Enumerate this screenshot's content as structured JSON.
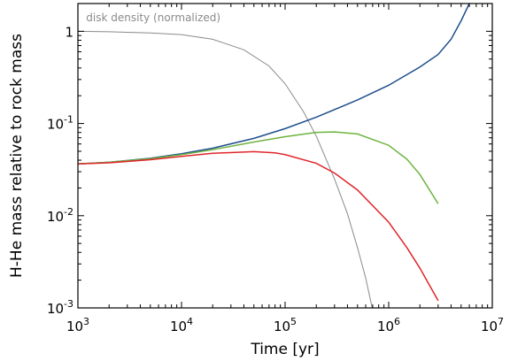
{
  "chart_data": {
    "type": "line",
    "title": "",
    "xlabel": "Time [yr]",
    "ylabel": "H-He mass relative to rock mass",
    "xscale": "log",
    "yscale": "log",
    "xlim": [
      1000,
      10000000
    ],
    "ylim": [
      0.001,
      2
    ],
    "x_ticks": [
      {
        "value": 1000,
        "base": "10",
        "exp": "3"
      },
      {
        "value": 10000,
        "base": "10",
        "exp": "4"
      },
      {
        "value": 100000,
        "base": "10",
        "exp": "5"
      },
      {
        "value": 1000000,
        "base": "10",
        "exp": "6"
      },
      {
        "value": 10000000,
        "base": "10",
        "exp": "7"
      }
    ],
    "y_ticks": [
      {
        "value": 1,
        "base": "1",
        "exp": ""
      },
      {
        "value": 0.1,
        "base": "10",
        "exp": "-1"
      },
      {
        "value": 0.01,
        "base": "10",
        "exp": "-2"
      },
      {
        "value": 0.001,
        "base": "10",
        "exp": "-3"
      }
    ],
    "grid": false,
    "annotation": {
      "text": "disk density (normalized)",
      "x": 1200,
      "y": 1.4
    },
    "series": [
      {
        "color": "#8a8a8a",
        "x": [
          1000,
          2000,
          5000,
          10000,
          20000,
          40000,
          70000,
          100000,
          150000,
          200000,
          300000,
          400000,
          500000,
          600000,
          700000
        ],
        "y": [
          1.0,
          0.99,
          0.96,
          0.92,
          0.82,
          0.63,
          0.42,
          0.27,
          0.135,
          0.073,
          0.025,
          0.0105,
          0.0045,
          0.0021,
          0.00095
        ]
      },
      {
        "color": "#1f4e8c",
        "x": [
          1000,
          2000,
          5000,
          10000,
          20000,
          50000,
          100000,
          200000,
          500000,
          1000000,
          2000000,
          3000000,
          4000000,
          5000000,
          6000000
        ],
        "y": [
          0.0365,
          0.038,
          0.042,
          0.047,
          0.054,
          0.069,
          0.088,
          0.117,
          0.18,
          0.26,
          0.41,
          0.56,
          0.82,
          1.3,
          2.0
        ]
      },
      {
        "color": "#6db33f",
        "x": [
          1000,
          2000,
          5000,
          10000,
          20000,
          50000,
          100000,
          200000,
          300000,
          500000,
          1000000,
          1500000,
          2000000,
          3000000
        ],
        "y": [
          0.0365,
          0.038,
          0.0415,
          0.046,
          0.052,
          0.063,
          0.072,
          0.08,
          0.081,
          0.077,
          0.058,
          0.041,
          0.028,
          0.0135
        ]
      },
      {
        "color": "#e0262b",
        "x": [
          1000,
          2000,
          5000,
          10000,
          20000,
          50000,
          80000,
          100000,
          200000,
          300000,
          500000,
          1000000,
          1500000,
          2000000,
          3000000
        ],
        "y": [
          0.0365,
          0.0375,
          0.0405,
          0.044,
          0.0475,
          0.0495,
          0.048,
          0.046,
          0.037,
          0.029,
          0.019,
          0.0085,
          0.0045,
          0.0027,
          0.0012
        ]
      }
    ]
  }
}
